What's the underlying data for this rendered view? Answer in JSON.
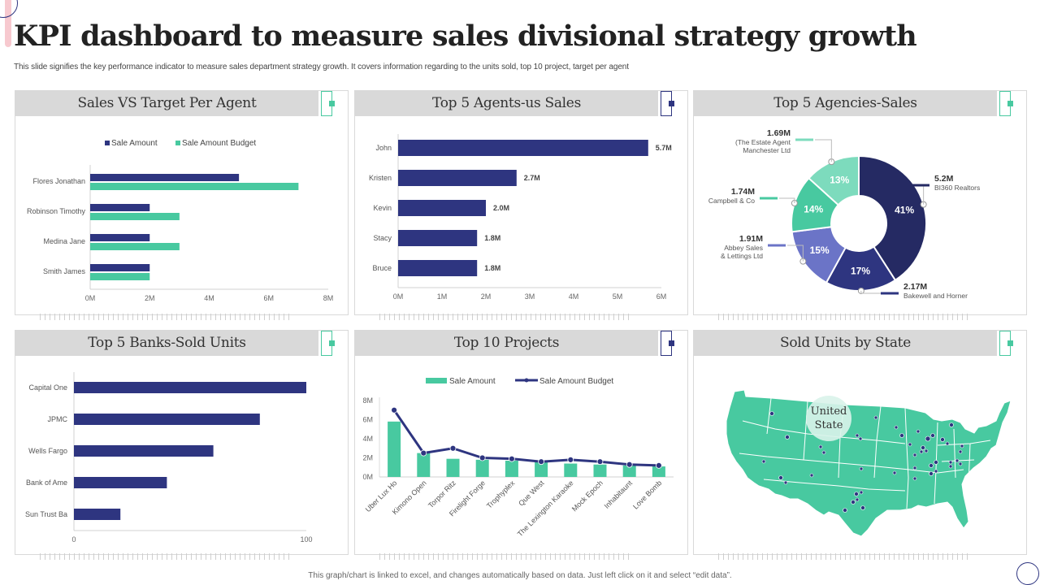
{
  "header": {
    "title": "KPI dashboard to measure sales divisional strategy growth",
    "subtitle": "This slide signifies the key performance indicator to measure sales department strategy growth. It covers information regarding to the units sold, top 10 project, target per agent"
  },
  "footer": {
    "note": "This graph/chart is linked to excel, and changes automatically based on data. Just left click on it and select “edit data”."
  },
  "colors": {
    "navy": "#2e3580",
    "teal": "#48c9a0",
    "light_teal": "#7ddbbd",
    "periwinkle": "#6b74c7",
    "dark_navy": "#252a63",
    "header_gray": "#d9d9d9"
  },
  "panels": [
    {
      "title": "Sales VS Target Per Agent"
    },
    {
      "title": "Top 5 Agents-us Sales"
    },
    {
      "title": "Top 5 Agencies-Sales"
    },
    {
      "title": "Top 5 Banks-Sold Units"
    },
    {
      "title": "Top 10 Projects"
    },
    {
      "title": "Sold Units by State"
    }
  ],
  "chart_data": [
    {
      "type": "bar",
      "orientation": "horizontal",
      "title": "Sales VS Target Per Agent",
      "categories": [
        "Flores Jonathan",
        "Robinson Timothy",
        "Medina Jane",
        "Smith James"
      ],
      "series": [
        {
          "name": "Sale Amount",
          "values": [
            5,
            2,
            2,
            2
          ],
          "color": "#2e3580"
        },
        {
          "name": "Sale Amount Budget",
          "values": [
            7,
            3,
            3,
            2
          ],
          "color": "#48c9a0"
        }
      ],
      "xticks": [
        "0M",
        "2M",
        "4M",
        "6M",
        "8M"
      ],
      "xlim": [
        0,
        8
      ],
      "unit": "M",
      "legend": "top"
    },
    {
      "type": "bar",
      "orientation": "horizontal",
      "title": "Top 5 Agents-us Sales",
      "categories": [
        "John",
        "Kristen",
        "Kevin",
        "Stacy",
        "Bruce"
      ],
      "values": [
        5.7,
        2.7,
        2.0,
        1.8,
        1.8
      ],
      "data_labels": [
        "5.7M",
        "2.7M",
        "2.0M",
        "1.8M",
        "1.8M"
      ],
      "xticks": [
        "0M",
        "1M",
        "2M",
        "3M",
        "4M",
        "5M",
        "6M"
      ],
      "xlim": [
        0,
        6
      ],
      "unit": "M"
    },
    {
      "type": "pie",
      "donut": true,
      "title": "Top 5 Agencies-Sales",
      "slices": [
        {
          "label": "BI360 Realtors",
          "value": 5.2,
          "value_label": "5.2M",
          "percent": "41%",
          "color": "#252a63"
        },
        {
          "label": "Bakewell and Horner",
          "value": 2.17,
          "value_label": "2.17M",
          "percent": "17%",
          "color": "#2e3580"
        },
        {
          "label": "Abbey Sales & Lettings Ltd",
          "value": 1.91,
          "value_label": "1.91M",
          "percent": "15%",
          "color": "#6b74c7"
        },
        {
          "label": "Campbell & Co",
          "value": 1.74,
          "value_label": "1.74M",
          "percent": "14%",
          "color": "#48c9a0"
        },
        {
          "label": "(The Estate Agent Manchester Ltd",
          "value": 1.69,
          "value_label": "1.69M",
          "percent": "13%",
          "color": "#7ddbbd"
        }
      ]
    },
    {
      "type": "bar",
      "orientation": "horizontal",
      "title": "Top 5 Banks-Sold Units",
      "categories": [
        "Capital One",
        "JPMC",
        "Wells Fargo",
        "Bank of Ame",
        "Sun Trust Ba"
      ],
      "values": [
        100,
        80,
        60,
        40,
        20
      ],
      "xticks": [
        "0",
        "100"
      ],
      "xlim": [
        0,
        100
      ]
    },
    {
      "type": "bar",
      "title": "Top 10 Projects",
      "categories": [
        "Uber Lux Ho",
        "Kimono Open",
        "Torpor Ritz",
        "Firelight Forge",
        "Trophyplex",
        "Que West",
        "The Lexington Karaoke",
        "Mock Epoch",
        "Inhabitaunt",
        "Love Bomb"
      ],
      "series": [
        {
          "name": "Sale Amount",
          "type": "bar",
          "values": [
            5.8,
            2.5,
            1.9,
            1.8,
            1.7,
            1.6,
            1.4,
            1.3,
            1.2,
            1.1
          ],
          "color": "#48c9a0"
        },
        {
          "name": "Sale Amount Budget",
          "type": "line",
          "values": [
            7.0,
            2.5,
            3.0,
            2.0,
            1.9,
            1.6,
            1.8,
            1.6,
            1.3,
            1.2
          ],
          "color": "#2e3580"
        }
      ],
      "yticks": [
        "0M",
        "2M",
        "4M",
        "6M",
        "8M"
      ],
      "ylim": [
        0,
        8
      ],
      "unit": "M",
      "legend": "top"
    },
    {
      "type": "map",
      "title": "Sold Units by State",
      "region": "United States",
      "center_label_lines": [
        "United",
        "State"
      ],
      "fill_color": "#48c9a0",
      "marker_color": "#2e3580"
    }
  ]
}
